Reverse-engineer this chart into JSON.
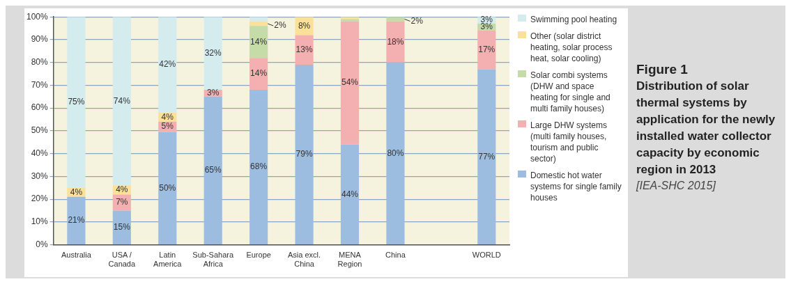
{
  "chart_data": {
    "type": "bar",
    "stacked": true,
    "title": "Figure 1",
    "subtitle": "Distribution of solar thermal systems by application for the newly installed water collector capacity by economic region in 2013",
    "annotations": [
      "[IEA-SHC 2015]"
    ],
    "categories": [
      "Australia",
      "USA / Canada",
      "Latin America",
      "Sub-Sahara Africa",
      "Europe",
      "Asia excl. China",
      "MENA Region",
      "China",
      null,
      "WORLD"
    ],
    "series": [
      {
        "name": "Domestic hot water systems for single family houses",
        "color": "#9dbde0",
        "values": [
          21,
          15,
          49.5,
          65,
          68,
          79,
          44,
          80,
          null,
          77
        ],
        "value_labels": [
          "21%",
          "15%",
          "50%",
          "65%",
          "68%",
          "79%",
          "44%",
          "80%",
          null,
          "77%"
        ]
      },
      {
        "name": "Large DHW systems (multi family houses, tourism and public sector)",
        "color": "#f4b0b0",
        "values": [
          0,
          7,
          4.5,
          3,
          14,
          13,
          54,
          18,
          null,
          17
        ],
        "value_labels": [
          null,
          "7%",
          "5%",
          "3%",
          "14%",
          "13%",
          "54%",
          "18%",
          null,
          "17%"
        ]
      },
      {
        "name": "Solar combi systems (DHW and space heating for single and multi family houses)",
        "color": "#c5dba8",
        "values": [
          0,
          0,
          0,
          0,
          14,
          0,
          1,
          2,
          null,
          3
        ],
        "value_labels": [
          null,
          null,
          null,
          null,
          "14%",
          null,
          null,
          "2%",
          null,
          "3%"
        ]
      },
      {
        "name": "Other (solar district heating, solar process heat, solar cooling)",
        "color": "#fbe09a",
        "values": [
          4,
          4,
          4,
          0,
          2,
          8,
          1,
          0,
          null,
          0
        ],
        "value_labels": [
          "4%",
          "4%",
          "4%",
          null,
          "2%",
          "8%",
          null,
          null,
          null,
          null
        ]
      },
      {
        "name": "Swimming pool heating",
        "color": "#d5ecef",
        "values": [
          75,
          74,
          42,
          32,
          2,
          0,
          0,
          0,
          null,
          3
        ],
        "value_labels": [
          "75%",
          "74%",
          "42%",
          "32%",
          null,
          null,
          null,
          null,
          null,
          "3%"
        ]
      }
    ],
    "ylim": [
      0,
      100
    ],
    "yticks": [
      {
        "value": 0,
        "label": "0%"
      },
      {
        "value": 10,
        "label": "10%"
      },
      {
        "value": 20,
        "label": "20%"
      },
      {
        "value": 30,
        "label": "30%"
      },
      {
        "value": 40,
        "label": "40%"
      },
      {
        "value": 50,
        "label": "50%"
      },
      {
        "value": 60,
        "label": "60%"
      },
      {
        "value": 70,
        "label": "70%"
      },
      {
        "value": 80,
        "label": "80%"
      },
      {
        "value": 90,
        "label": "90%"
      },
      {
        "value": 100,
        "label": "100%"
      }
    ],
    "grid": "y",
    "legend": "right"
  }
}
